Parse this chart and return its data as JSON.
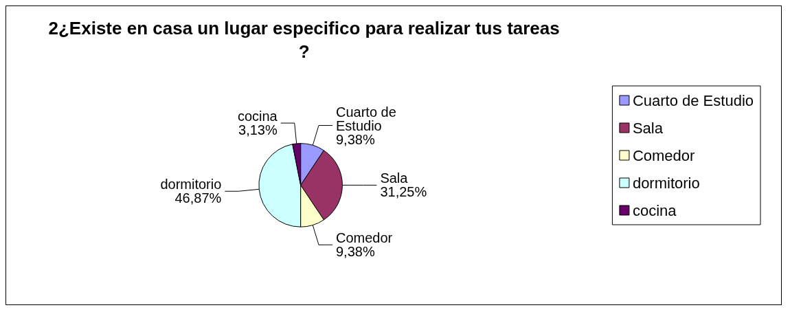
{
  "chart_data": {
    "type": "pie",
    "title": "2¿Existe en casa un lugar especifico para realizar tus tareas?",
    "categories": [
      "Cuarto de Estudio",
      "Sala",
      "Comedor",
      "dormitorio",
      "cocina"
    ],
    "values": [
      9.38,
      31.25,
      9.38,
      46.87,
      3.13
    ],
    "value_labels": [
      "9,38%",
      "31,25%",
      "9,38%",
      "46,87%",
      "3,13%"
    ],
    "colors": [
      "#9999ff",
      "#993366",
      "#ffffcc",
      "#ccffff",
      "#660066"
    ],
    "legend": "right"
  }
}
